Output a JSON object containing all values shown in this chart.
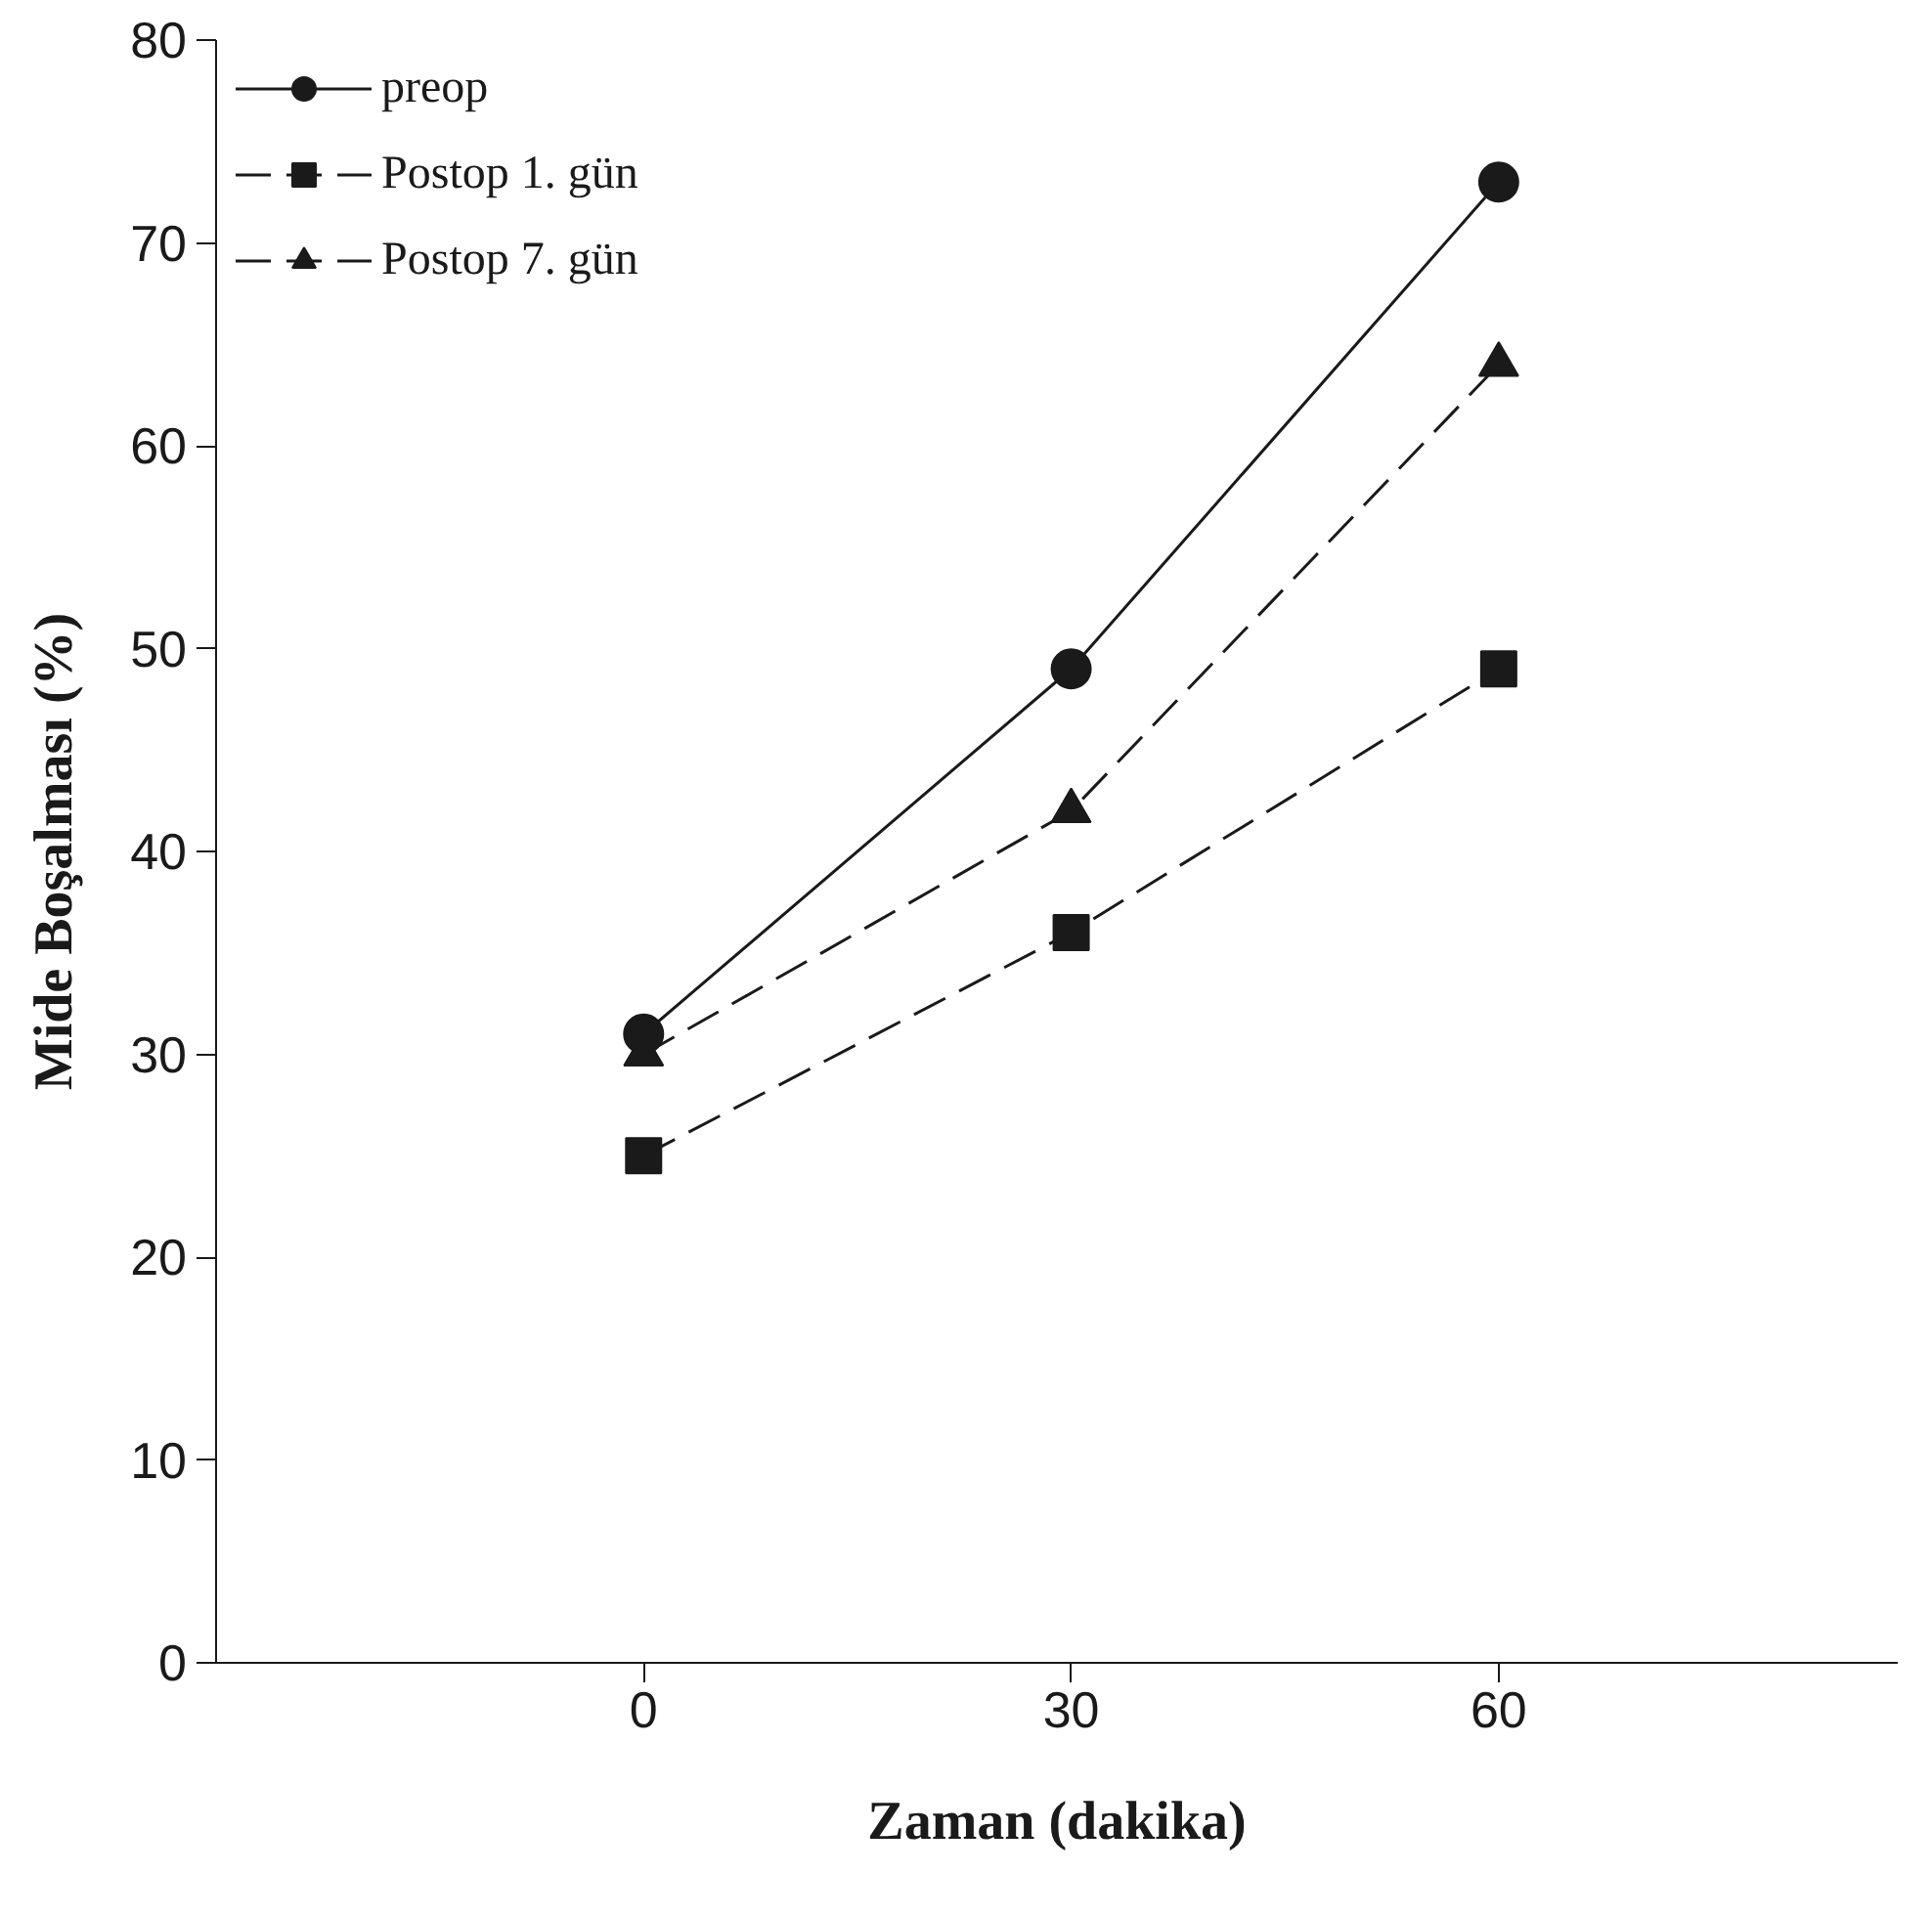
{
  "chart_data": {
    "type": "line",
    "xlabel": "Zaman (dakika)",
    "ylabel": "Mide Boşalması (%)",
    "x": [
      0,
      30,
      60
    ],
    "xlim": [
      -30,
      88
    ],
    "xticks": [
      0,
      30,
      60
    ],
    "ylim": [
      0,
      80
    ],
    "yticks": [
      0,
      10,
      20,
      30,
      40,
      50,
      60,
      70,
      80
    ],
    "grid": false,
    "legend": "top left",
    "series": [
      {
        "name": "preop",
        "color": "#1a1a1a",
        "values": [
          31,
          49,
          73
        ],
        "marker": "circle",
        "line_style": "solid"
      },
      {
        "name": "Postop 1. gün",
        "color": "#1a1a1a",
        "values": [
          25,
          36,
          49
        ],
        "marker": "square",
        "line_style": "dashed"
      },
      {
        "name": "Postop 7. gün",
        "color": "#1a1a1a",
        "values": [
          30,
          42,
          64
        ],
        "marker": "triangle",
        "line_style": "dashed"
      }
    ]
  }
}
